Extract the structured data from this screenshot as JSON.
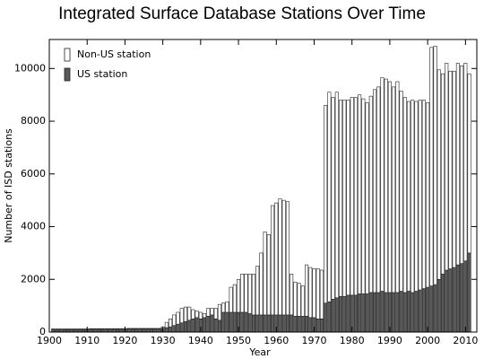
{
  "chart_data": {
    "type": "stacked_bar",
    "title": "Integrated Surface Database Stations Over Time",
    "xlabel": "Year",
    "ylabel": "Number of ISD stations",
    "x": [
      1901,
      1902,
      1903,
      1904,
      1905,
      1906,
      1907,
      1908,
      1909,
      1910,
      1911,
      1912,
      1913,
      1914,
      1915,
      1916,
      1917,
      1918,
      1919,
      1920,
      1921,
      1922,
      1923,
      1924,
      1925,
      1926,
      1927,
      1928,
      1929,
      1930,
      1931,
      1932,
      1933,
      1934,
      1935,
      1936,
      1937,
      1938,
      1939,
      1940,
      1941,
      1942,
      1943,
      1944,
      1945,
      1946,
      1947,
      1948,
      1949,
      1950,
      1951,
      1952,
      1953,
      1954,
      1955,
      1956,
      1957,
      1958,
      1959,
      1960,
      1961,
      1962,
      1963,
      1964,
      1965,
      1966,
      1967,
      1968,
      1969,
      1970,
      1971,
      1972,
      1973,
      1974,
      1975,
      1976,
      1977,
      1978,
      1979,
      1980,
      1981,
      1982,
      1983,
      1984,
      1985,
      1986,
      1987,
      1988,
      1989,
      1990,
      1991,
      1992,
      1993,
      1994,
      1995,
      1996,
      1997,
      1998,
      1999,
      2000,
      2001,
      2002,
      2003,
      2004,
      2005,
      2006,
      2007,
      2008,
      2009,
      2010,
      2011
    ],
    "series": [
      {
        "name": "US station",
        "color": "#595959",
        "values": [
          100,
          100,
          100,
          100,
          100,
          100,
          100,
          100,
          100,
          100,
          110,
          110,
          110,
          110,
          110,
          110,
          110,
          110,
          110,
          110,
          120,
          120,
          120,
          120,
          120,
          120,
          120,
          120,
          120,
          140,
          170,
          200,
          250,
          300,
          350,
          400,
          450,
          500,
          550,
          500,
          550,
          600,
          650,
          500,
          450,
          750,
          750,
          750,
          750,
          750,
          750,
          750,
          700,
          650,
          650,
          650,
          650,
          650,
          650,
          650,
          650,
          650,
          650,
          650,
          600,
          600,
          600,
          600,
          550,
          550,
          500,
          500,
          1100,
          1150,
          1250,
          1300,
          1350,
          1350,
          1400,
          1400,
          1400,
          1450,
          1450,
          1450,
          1500,
          1500,
          1500,
          1550,
          1500,
          1500,
          1500,
          1500,
          1550,
          1500,
          1550,
          1500,
          1550,
          1600,
          1650,
          1700,
          1750,
          1800,
          2000,
          2200,
          2350,
          2400,
          2450,
          2550,
          2600,
          2700,
          3000
        ]
      },
      {
        "name": "Non-US station",
        "color": "#ffffff",
        "values": [
          20,
          20,
          20,
          20,
          20,
          20,
          20,
          20,
          20,
          20,
          20,
          20,
          20,
          20,
          20,
          20,
          20,
          20,
          20,
          20,
          20,
          20,
          20,
          20,
          20,
          20,
          20,
          20,
          20,
          60,
          200,
          300,
          400,
          450,
          550,
          550,
          500,
          350,
          250,
          250,
          150,
          300,
          250,
          400,
          600,
          350,
          400,
          950,
          1050,
          1250,
          1450,
          1450,
          1500,
          1550,
          1850,
          2350,
          3150,
          3050,
          4150,
          4250,
          4400,
          4350,
          4300,
          1550,
          1300,
          1250,
          1150,
          1950,
          1900,
          1850,
          1900,
          1850,
          7500,
          7950,
          7650,
          7800,
          7450,
          7450,
          7400,
          7500,
          7500,
          7550,
          7400,
          7250,
          7450,
          7700,
          7800,
          8100,
          8100,
          8000,
          7800,
          8000,
          7600,
          7400,
          7200,
          7300,
          7200,
          7200,
          7150,
          7000,
          9050,
          9050,
          7950,
          7600,
          7850,
          7500,
          7450,
          7650,
          7500,
          7500,
          6800
        ]
      }
    ],
    "xlim": [
      1900,
      2013
    ],
    "xticks": [
      1900,
      1910,
      1920,
      1930,
      1940,
      1950,
      1960,
      1970,
      1980,
      1990,
      2000,
      2010
    ],
    "ylim": [
      0,
      11100
    ],
    "yticks": [
      0,
      2000,
      4000,
      6000,
      8000,
      10000
    ],
    "legend": "upper-left"
  }
}
